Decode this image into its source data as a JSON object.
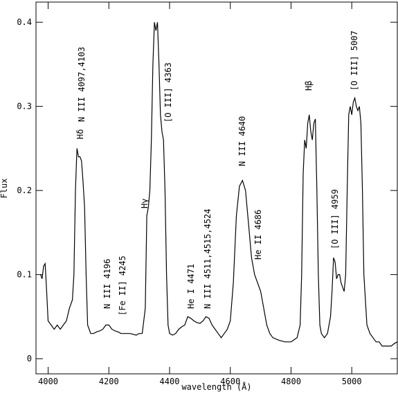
{
  "chart_data": {
    "type": "line",
    "xlabel": "wavelength (Å)",
    "ylabel": "Flux",
    "xlim": [
      3960,
      5150
    ],
    "ylim": [
      -0.018,
      0.424
    ],
    "xticks": [
      4000,
      4200,
      4400,
      4600,
      4800,
      5000
    ],
    "yticks": [
      0,
      0.1,
      0.2,
      0.3,
      0.4
    ],
    "color": "#000000",
    "x": [
      3975,
      3980,
      3985,
      3990,
      3995,
      4000,
      4010,
      4020,
      4030,
      4040,
      4050,
      4060,
      4070,
      4080,
      4085,
      4090,
      4095,
      4100,
      4105,
      4110,
      4115,
      4120,
      4125,
      4130,
      4140,
      4150,
      4160,
      4170,
      4180,
      4190,
      4200,
      4210,
      4220,
      4230,
      4240,
      4250,
      4260,
      4270,
      4280,
      4290,
      4300,
      4310,
      4320,
      4325,
      4330,
      4335,
      4340,
      4345,
      4350,
      4355,
      4360,
      4365,
      4370,
      4375,
      4380,
      4385,
      4390,
      4395,
      4400,
      4410,
      4420,
      4430,
      4440,
      4450,
      4460,
      4470,
      4480,
      4490,
      4500,
      4510,
      4520,
      4530,
      4540,
      4550,
      4560,
      4570,
      4580,
      4590,
      4600,
      4610,
      4620,
      4630,
      4640,
      4650,
      4660,
      4670,
      4680,
      4690,
      4700,
      4710,
      4720,
      4730,
      4740,
      4760,
      4780,
      4800,
      4820,
      4830,
      4835,
      4840,
      4845,
      4850,
      4855,
      4860,
      4865,
      4870,
      4875,
      4880,
      4885,
      4890,
      4895,
      4900,
      4910,
      4920,
      4930,
      4935,
      4940,
      4945,
      4950,
      4955,
      4960,
      4965,
      4970,
      4975,
      4980,
      4985,
      4990,
      4995,
      5000,
      5005,
      5010,
      5015,
      5020,
      5025,
      5030,
      5035,
      5040,
      5050,
      5060,
      5070,
      5080,
      5090,
      5100,
      5120,
      5130,
      5140,
      5150
    ],
    "values": [
      0.1,
      0.095,
      0.11,
      0.113,
      0.08,
      0.045,
      0.04,
      0.035,
      0.04,
      0.035,
      0.04,
      0.045,
      0.06,
      0.07,
      0.1,
      0.2,
      0.25,
      0.24,
      0.24,
      0.235,
      0.21,
      0.18,
      0.1,
      0.04,
      0.03,
      0.03,
      0.032,
      0.033,
      0.035,
      0.04,
      0.04,
      0.035,
      0.033,
      0.032,
      0.03,
      0.03,
      0.03,
      0.03,
      0.029,
      0.028,
      0.03,
      0.03,
      0.06,
      0.17,
      0.18,
      0.2,
      0.26,
      0.35,
      0.4,
      0.39,
      0.4,
      0.35,
      0.29,
      0.27,
      0.26,
      0.2,
      0.1,
      0.04,
      0.03,
      0.028,
      0.03,
      0.035,
      0.038,
      0.04,
      0.05,
      0.048,
      0.045,
      0.043,
      0.042,
      0.045,
      0.05,
      0.048,
      0.04,
      0.035,
      0.03,
      0.025,
      0.03,
      0.035,
      0.045,
      0.09,
      0.17,
      0.205,
      0.212,
      0.2,
      0.16,
      0.12,
      0.1,
      0.09,
      0.08,
      0.06,
      0.04,
      0.03,
      0.025,
      0.022,
      0.02,
      0.02,
      0.025,
      0.04,
      0.1,
      0.22,
      0.26,
      0.25,
      0.28,
      0.29,
      0.27,
      0.26,
      0.28,
      0.285,
      0.2,
      0.1,
      0.04,
      0.03,
      0.025,
      0.03,
      0.05,
      0.08,
      0.12,
      0.115,
      0.095,
      0.1,
      0.1,
      0.09,
      0.085,
      0.08,
      0.1,
      0.2,
      0.29,
      0.3,
      0.29,
      0.305,
      0.31,
      0.3,
      0.295,
      0.3,
      0.28,
      0.2,
      0.1,
      0.04,
      0.03,
      0.025,
      0.02,
      0.02,
      0.015,
      0.015,
      0.015,
      0.018,
      0.02
    ],
    "annotations": [
      "Hδ",
      "N III 4097,4103",
      "N III 4196",
      "[Fe II] 4245",
      "Hγ",
      "[O III] 4363",
      "He I 4471",
      "N III 4511,4515,4524",
      "N III 4640",
      "He II 4686",
      "Hβ",
      "[O III] 4959",
      "[O III] 5007"
    ]
  }
}
